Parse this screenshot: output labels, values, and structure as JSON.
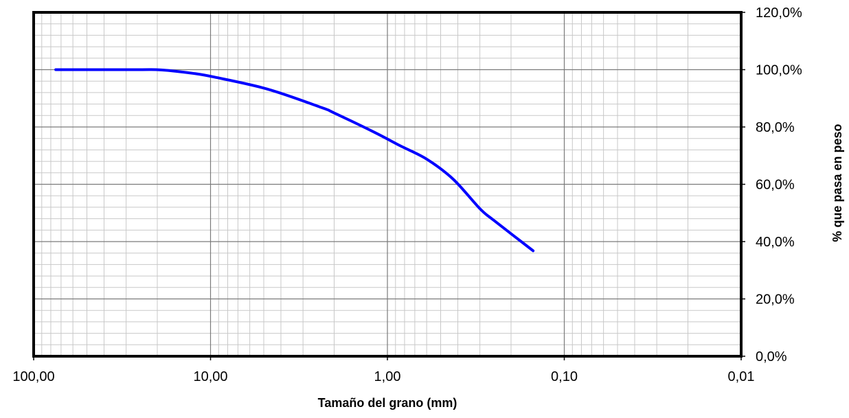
{
  "chart_data": {
    "type": "line",
    "title": "",
    "xlabel": "Tamaño del grano (mm)",
    "ylabel": "% que pasa en peso",
    "x_scale": "log",
    "x_reversed": true,
    "xlim": [
      100,
      0.01
    ],
    "ylim": [
      0,
      120
    ],
    "grid": true,
    "legend": "none",
    "x_tick_labels": [
      "100,00",
      "10,00",
      "1,00",
      "0,10",
      "0,01"
    ],
    "y_tick_labels": [
      "0,0%",
      "20,0%",
      "40,0%",
      "60,0%",
      "80,0%",
      "100,0%",
      "120,0%"
    ],
    "y_axis_side": "right",
    "series": [
      {
        "color": "#0000FF",
        "x": [
          75,
          50,
          25,
          19,
          12.5,
          9.5,
          4.75,
          2.36,
          2,
          1.18,
          0.85,
          0.6,
          0.425,
          0.3,
          0.25,
          0.15
        ],
        "y": [
          100,
          100,
          100,
          99.9,
          98.7,
          97.4,
          93.2,
          86.8,
          84.9,
          78.1,
          73.5,
          68.8,
          61.8,
          51.5,
          47.4,
          36.8
        ]
      }
    ]
  }
}
